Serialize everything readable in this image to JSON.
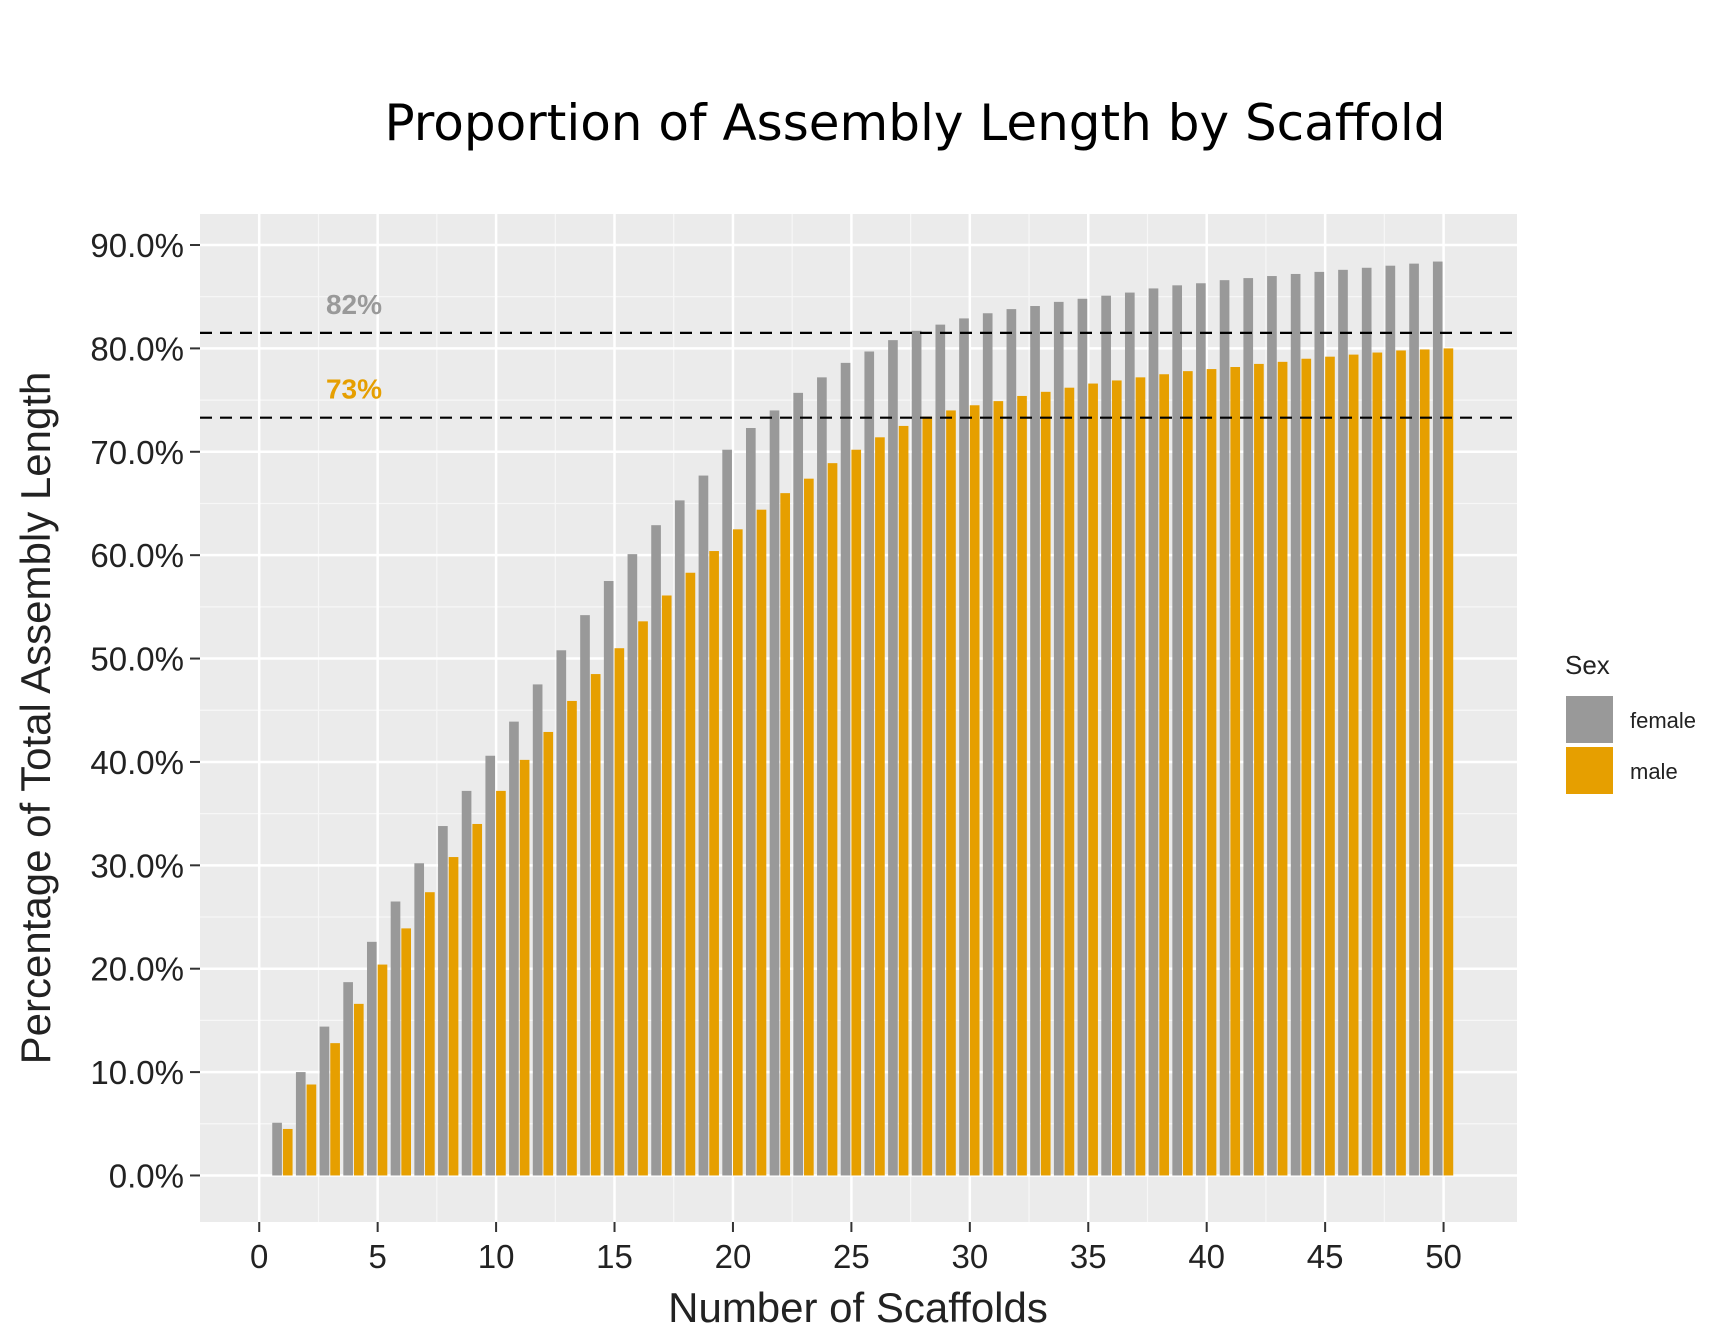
{
  "chart_data": {
    "type": "bar",
    "title": "Proportion of Assembly Length by Scaffold",
    "xlabel": "Number of Scaffolds",
    "ylabel": "Percentage of Total Assembly Length",
    "x_ticks": [
      "0",
      "5",
      "10",
      "15",
      "20",
      "25",
      "30",
      "35",
      "40",
      "45",
      "50"
    ],
    "y_ticks": [
      "0.0%",
      "10.0%",
      "20.0%",
      "30.0%",
      "40.0%",
      "50.0%",
      "60.0%",
      "70.0%",
      "80.0%",
      "90.0%"
    ],
    "xlim": [
      -2.5,
      53.1
    ],
    "ylim": [
      -4.5,
      93
    ],
    "x": [
      1,
      2,
      3,
      4,
      5,
      6,
      7,
      8,
      9,
      10,
      11,
      12,
      13,
      14,
      15,
      16,
      17,
      18,
      19,
      20,
      21,
      22,
      23,
      24,
      25,
      26,
      27,
      28,
      29,
      30,
      31,
      32,
      33,
      34,
      35,
      36,
      37,
      38,
      39,
      40,
      41,
      42,
      43,
      44,
      45,
      46,
      47,
      48,
      49,
      50
    ],
    "legend": {
      "title": "Sex",
      "position": "right"
    },
    "grid": true,
    "series": [
      {
        "name": "female",
        "color": "#999999",
        "values": [
          5.1,
          10.0,
          14.4,
          18.7,
          22.6,
          26.5,
          30.2,
          33.8,
          37.2,
          40.6,
          43.9,
          47.5,
          50.8,
          54.2,
          57.5,
          60.1,
          62.9,
          65.3,
          67.7,
          70.2,
          72.3,
          74.0,
          75.7,
          77.2,
          78.6,
          79.7,
          80.8,
          81.7,
          82.3,
          82.9,
          83.4,
          83.8,
          84.1,
          84.5,
          84.8,
          85.1,
          85.4,
          85.8,
          86.1,
          86.3,
          86.6,
          86.8,
          87.0,
          87.2,
          87.4,
          87.6,
          87.8,
          88.0,
          88.2,
          88.4
        ]
      },
      {
        "name": "male",
        "color": "#E69F00",
        "values": [
          4.5,
          8.8,
          12.8,
          16.6,
          20.4,
          23.9,
          27.4,
          30.8,
          34.0,
          37.2,
          40.2,
          42.9,
          45.9,
          48.5,
          51.0,
          53.6,
          56.1,
          58.3,
          60.4,
          62.5,
          64.4,
          66.0,
          67.4,
          68.9,
          70.2,
          71.4,
          72.5,
          73.4,
          74.0,
          74.5,
          74.9,
          75.4,
          75.8,
          76.2,
          76.6,
          76.9,
          77.2,
          77.5,
          77.8,
          78.0,
          78.2,
          78.5,
          78.7,
          79.0,
          79.2,
          79.4,
          79.6,
          79.8,
          79.9,
          80.0
        ]
      }
    ],
    "reference_lines": [
      {
        "y": 81.5,
        "label": "82%",
        "color": "#999999",
        "style": "dashed"
      },
      {
        "y": 73.3,
        "label": "73%",
        "color": "#E69F00",
        "style": "dashed"
      }
    ]
  }
}
